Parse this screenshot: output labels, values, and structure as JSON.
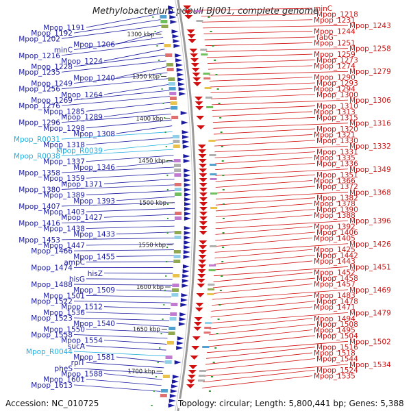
{
  "title": "Methylobacterium populi BJ001, complete genome",
  "footer": {
    "accession": "Accession: NC_010725",
    "summary": "Topology: circular; Length: 5,800,441 bp; Genes: 5,388"
  },
  "colors": {
    "forward": "#d01010",
    "reverse": "#1a1aa0",
    "rna": "#22aee0",
    "ring": "#9a9a9a"
  },
  "kbp_marks": [
    "1300 kbp",
    "1350 kbp",
    "1400 kbp",
    "1450 kbp",
    "1500 kbp",
    "1550 kbp",
    "1600 kbp",
    "1650 kbp",
    "1700 kbp"
  ],
  "left_labels": [
    {
      "text": "Mpop_1191",
      "type": "gene"
    },
    {
      "text": "Mpop_1192",
      "type": "gene"
    },
    {
      "text": "Mpop_1202",
      "type": "gene"
    },
    {
      "text": "Mpop_1206",
      "type": "gene"
    },
    {
      "text": "minC",
      "type": "gene"
    },
    {
      "text": "Mpop_1216",
      "type": "gene"
    },
    {
      "text": "Mpop_1224",
      "type": "gene"
    },
    {
      "text": "Mpop_1228",
      "type": "gene"
    },
    {
      "text": "Mpop_1235",
      "type": "gene"
    },
    {
      "text": "Mpop_1240",
      "type": "gene"
    },
    {
      "text": "Mpop_1249",
      "type": "gene"
    },
    {
      "text": "Mpop_1256",
      "type": "gene"
    },
    {
      "text": "Mpop_1264",
      "type": "gene"
    },
    {
      "text": "Mpop_1269",
      "type": "gene"
    },
    {
      "text": "Mpop_1276",
      "type": "gene"
    },
    {
      "text": "Mpop_1285",
      "type": "gene"
    },
    {
      "text": "Mpop_1289",
      "type": "gene"
    },
    {
      "text": "Mpop_1296",
      "type": "gene"
    },
    {
      "text": "Mpop_1298",
      "type": "gene"
    },
    {
      "text": "Mpop_1308",
      "type": "gene"
    },
    {
      "text": "Mpop_R0031",
      "type": "rna"
    },
    {
      "text": "Mpop_1318",
      "type": "gene"
    },
    {
      "text": "Mpop_R0039",
      "type": "rna"
    },
    {
      "text": "Mpop_R0038",
      "type": "rna"
    },
    {
      "text": "Mpop_1337",
      "type": "gene"
    },
    {
      "text": "Mpop_1346",
      "type": "gene"
    },
    {
      "text": "Mpop_1358",
      "type": "gene"
    },
    {
      "text": "Mpop_1359",
      "type": "gene"
    },
    {
      "text": "Mpop_1371",
      "type": "gene"
    },
    {
      "text": "Mpop_1380",
      "type": "gene"
    },
    {
      "text": "Mpop_1389",
      "type": "gene"
    },
    {
      "text": "Mpop_1393",
      "type": "gene"
    },
    {
      "text": "Mpop_1407",
      "type": "gene"
    },
    {
      "text": "Mpop_1403",
      "type": "gene"
    },
    {
      "text": "Mpop_1427",
      "type": "gene"
    },
    {
      "text": "Mpop_1416",
      "type": "gene"
    },
    {
      "text": "Mpop_1438",
      "type": "gene"
    },
    {
      "text": "Mpop_1433",
      "type": "gene"
    },
    {
      "text": "Mpop_1453",
      "type": "gene"
    },
    {
      "text": "Mpop_1447",
      "type": "gene"
    },
    {
      "text": "Mpop_1466",
      "type": "gene"
    },
    {
      "text": "Mpop_1455",
      "type": "gene"
    },
    {
      "text": "ampC",
      "type": "gene"
    },
    {
      "text": "Mpop_1474",
      "type": "gene"
    },
    {
      "text": "hisZ",
      "type": "gene"
    },
    {
      "text": "hisG",
      "type": "gene"
    },
    {
      "text": "Mpop_1488",
      "type": "gene"
    },
    {
      "text": "Mpop_1509",
      "type": "gene"
    },
    {
      "text": "Mpop_1501",
      "type": "gene"
    },
    {
      "text": "Mpop_1522",
      "type": "gene"
    },
    {
      "text": "Mpop_1512",
      "type": "gene"
    },
    {
      "text": "Mpop_1536",
      "type": "gene"
    },
    {
      "text": "Mpop_1523",
      "type": "gene"
    },
    {
      "text": "Mpop_1540",
      "type": "gene"
    },
    {
      "text": "Mpop_1550",
      "type": "gene"
    },
    {
      "text": "Mpop_1558",
      "type": "gene"
    },
    {
      "text": "Mpop_1554",
      "type": "gene"
    },
    {
      "text": "sucA",
      "type": "gene"
    },
    {
      "text": "Mpop_R0044",
      "type": "rna"
    },
    {
      "text": "Mpop_1581",
      "type": "gene"
    },
    {
      "text": "rplT",
      "type": "gene"
    },
    {
      "text": "pheS",
      "type": "gene"
    },
    {
      "text": "Mpop_1588",
      "type": "gene"
    },
    {
      "text": "Mpop_1601",
      "type": "gene"
    },
    {
      "text": "Mpop_1613",
      "type": "gene"
    }
  ],
  "right_labels": [
    {
      "text": "minC",
      "type": "gene"
    },
    {
      "text": "Mpop_1218",
      "type": "gene"
    },
    {
      "text": "Mpop_1231",
      "type": "gene"
    },
    {
      "text": "Mpop_1243",
      "type": "gene"
    },
    {
      "text": "Mpop_1244",
      "type": "gene"
    },
    {
      "text": "fabG",
      "type": "gene"
    },
    {
      "text": "Mpop_1251",
      "type": "gene"
    },
    {
      "text": "Mpop_1258",
      "type": "gene"
    },
    {
      "text": "Mpop_1259",
      "type": "gene"
    },
    {
      "text": "Mpop_1273",
      "type": "gene"
    },
    {
      "text": "Mpop_1274",
      "type": "gene"
    },
    {
      "text": "Mpop_1279",
      "type": "gene"
    },
    {
      "text": "Mpop_1290",
      "type": "gene"
    },
    {
      "text": "Mpop_1293",
      "type": "gene"
    },
    {
      "text": "Mpop_1294",
      "type": "gene"
    },
    {
      "text": "Mpop_1300",
      "type": "gene"
    },
    {
      "text": "Mpop_1306",
      "type": "gene"
    },
    {
      "text": "Mpop_1310",
      "type": "gene"
    },
    {
      "text": "Mpop_1313",
      "type": "gene"
    },
    {
      "text": "Mpop_1315",
      "type": "gene"
    },
    {
      "text": "Mpop_1316",
      "type": "gene"
    },
    {
      "text": "Mpop_1320",
      "type": "gene"
    },
    {
      "text": "Mpop_1321",
      "type": "gene"
    },
    {
      "text": "Mpop_1330",
      "type": "gene"
    },
    {
      "text": "Mpop_1332",
      "type": "gene"
    },
    {
      "text": "Mpop_1331",
      "type": "gene"
    },
    {
      "text": "Mpop_1335",
      "type": "gene"
    },
    {
      "text": "Mpop_1336",
      "type": "gene"
    },
    {
      "text": "Mpop_1349",
      "type": "gene"
    },
    {
      "text": "Mpop_1351",
      "type": "gene"
    },
    {
      "text": "Mpop_1366",
      "type": "gene"
    },
    {
      "text": "Mpop_1372",
      "type": "gene"
    },
    {
      "text": "Mpop_1368",
      "type": "gene"
    },
    {
      "text": "Mpop_1382",
      "type": "gene"
    },
    {
      "text": "Mpop_1378",
      "type": "gene"
    },
    {
      "text": "Mpop_1390",
      "type": "gene"
    },
    {
      "text": "Mpop_1388",
      "type": "gene"
    },
    {
      "text": "Mpop_1396",
      "type": "gene"
    },
    {
      "text": "Mpop_1392",
      "type": "gene"
    },
    {
      "text": "Mpop_1406",
      "type": "gene"
    },
    {
      "text": "Mpop_1405",
      "type": "gene"
    },
    {
      "text": "Mpop_1426",
      "type": "gene"
    },
    {
      "text": "Mpop_1425",
      "type": "gene"
    },
    {
      "text": "Mpop_1442",
      "type": "gene"
    },
    {
      "text": "Mpop_1443",
      "type": "gene"
    },
    {
      "text": "Mpop_1451",
      "type": "gene"
    },
    {
      "text": "Mpop_1452",
      "type": "gene"
    },
    {
      "text": "Mpop_1458",
      "type": "gene"
    },
    {
      "text": "Mpop_1457",
      "type": "gene"
    },
    {
      "text": "Mpop_1469",
      "type": "gene"
    },
    {
      "text": "Mpop_1483",
      "type": "gene"
    },
    {
      "text": "Mpop_1478",
      "type": "gene"
    },
    {
      "text": "Mpop_1471",
      "type": "gene"
    },
    {
      "text": "Mpop_1479",
      "type": "gene"
    },
    {
      "text": "Mpop_1494",
      "type": "gene"
    },
    {
      "text": "Mpop_1508",
      "type": "gene"
    },
    {
      "text": "Mpop_1495",
      "type": "gene"
    },
    {
      "text": "Mpop_1504",
      "type": "gene"
    },
    {
      "text": "Mpop_1502",
      "type": "gene"
    },
    {
      "text": "Mpop_1516",
      "type": "gene"
    },
    {
      "text": "Mpop_1518",
      "type": "gene"
    },
    {
      "text": "Mpop_1544",
      "type": "gene"
    },
    {
      "text": "Mpop_1534",
      "type": "gene"
    },
    {
      "text": "Mpop_1524",
      "type": "gene"
    },
    {
      "text": "Mpop_1535",
      "type": "gene"
    }
  ]
}
